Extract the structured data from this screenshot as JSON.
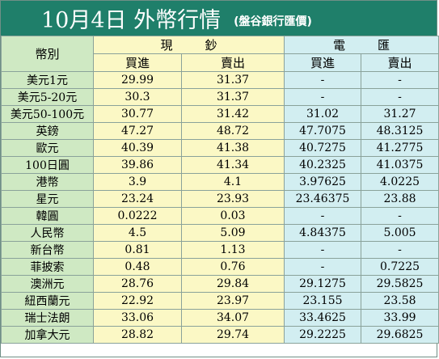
{
  "title": {
    "main": "10月4日 外幣行情",
    "sub": "(盤谷銀行匯價)"
  },
  "header": {
    "currency_col": "幣別",
    "cash_group": "現鈔",
    "wire_group": "電匯",
    "buy": "買進",
    "sell": "賣出"
  },
  "rows": [
    {
      "name": "美元1元",
      "cash_buy": "29.99",
      "cash_sell": "31.37",
      "wire_buy": "-",
      "wire_sell": "-"
    },
    {
      "name": "美元5-20元",
      "cash_buy": "30.3",
      "cash_sell": "31.37",
      "wire_buy": "-",
      "wire_sell": "-"
    },
    {
      "name": "美元50-100元",
      "cash_buy": "30.77",
      "cash_sell": "31.42",
      "wire_buy": "31.02",
      "wire_sell": "31.27"
    },
    {
      "name": "英鎊",
      "cash_buy": "47.27",
      "cash_sell": "48.72",
      "wire_buy": "47.7075",
      "wire_sell": "48.3125"
    },
    {
      "name": "歐元",
      "cash_buy": "40.39",
      "cash_sell": "41.38",
      "wire_buy": "40.7275",
      "wire_sell": "41.2775"
    },
    {
      "name": "100日圓",
      "cash_buy": "39.86",
      "cash_sell": "41.34",
      "wire_buy": "40.2325",
      "wire_sell": "41.0375"
    },
    {
      "name": "港幣",
      "cash_buy": "3.9",
      "cash_sell": "4.1",
      "wire_buy": "3.97625",
      "wire_sell": "4.0225"
    },
    {
      "name": "星元",
      "cash_buy": "23.24",
      "cash_sell": "23.93",
      "wire_buy": "23.46375",
      "wire_sell": "23.88"
    },
    {
      "name": "韓圓",
      "cash_buy": "0.0222",
      "cash_sell": "0.03",
      "wire_buy": "-",
      "wire_sell": "-"
    },
    {
      "name": "人民幣",
      "cash_buy": "4.5",
      "cash_sell": "5.09",
      "wire_buy": "4.84375",
      "wire_sell": "5.005"
    },
    {
      "name": "新台幣",
      "cash_buy": "0.81",
      "cash_sell": "1.13",
      "wire_buy": "-",
      "wire_sell": "-"
    },
    {
      "name": "菲披索",
      "cash_buy": "0.48",
      "cash_sell": "0.76",
      "wire_buy": "-",
      "wire_sell": "0.7225"
    },
    {
      "name": "澳洲元",
      "cash_buy": "28.76",
      "cash_sell": "29.84",
      "wire_buy": "29.1275",
      "wire_sell": "29.5825"
    },
    {
      "name": "紐西蘭元",
      "cash_buy": "22.92",
      "cash_sell": "23.97",
      "wire_buy": "23.155",
      "wire_sell": "23.58"
    },
    {
      "name": "瑞士法朗",
      "cash_buy": "33.06",
      "cash_sell": "34.07",
      "wire_buy": "33.4625",
      "wire_sell": "33.99"
    },
    {
      "name": "加拿大元",
      "cash_buy": "28.82",
      "cash_sell": "29.74",
      "wire_buy": "29.2225",
      "wire_sell": "29.6825"
    }
  ],
  "colors": {
    "title_bg": "#1f7f6a",
    "name_col_bg": "#cfe9c3",
    "cash_col_bg": "#fbf8c5",
    "wire_col_bg": "#d2eef1"
  }
}
